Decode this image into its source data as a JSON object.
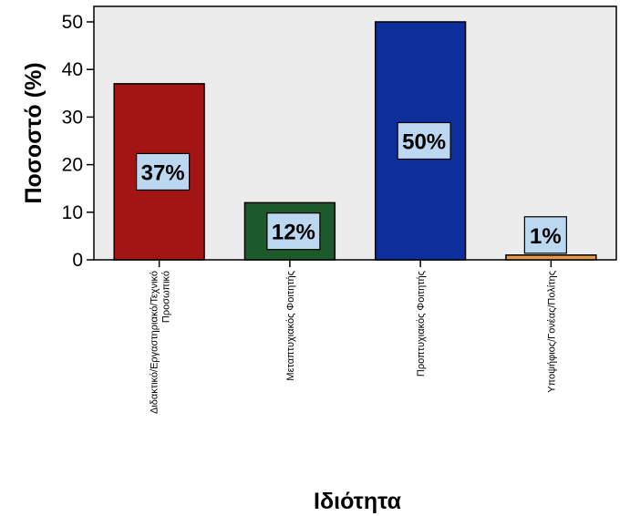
{
  "chart_data": {
    "type": "bar",
    "categories": [
      [
        "Διδακτικό/Εργαστηριακό/Τεχνικό",
        "Προσωπικό"
      ],
      [
        "Μεταπτυχιακός Φοιτητής"
      ],
      [
        "Προπτυχιακός Φοιτητής"
      ],
      [
        "Υποψήφιος/Γονέας/Πολίτης"
      ]
    ],
    "values": [
      37,
      12,
      50,
      1
    ],
    "data_labels": [
      "37%",
      "12%",
      "50%",
      "1%"
    ],
    "bar_colors": [
      "#a31515",
      "#1c5a2c",
      "#0c2f9c",
      "#e59a4a"
    ],
    "label_box_color": "#bcd7f0",
    "plot_background": "#ececec",
    "xlabel": "Ιδιότητα",
    "ylabel": "Ποσοστό (%)",
    "yticks": [
      0,
      10,
      20,
      30,
      40,
      50
    ],
    "ylim": [
      0,
      50
    ],
    "grid": false,
    "legend": "none"
  }
}
